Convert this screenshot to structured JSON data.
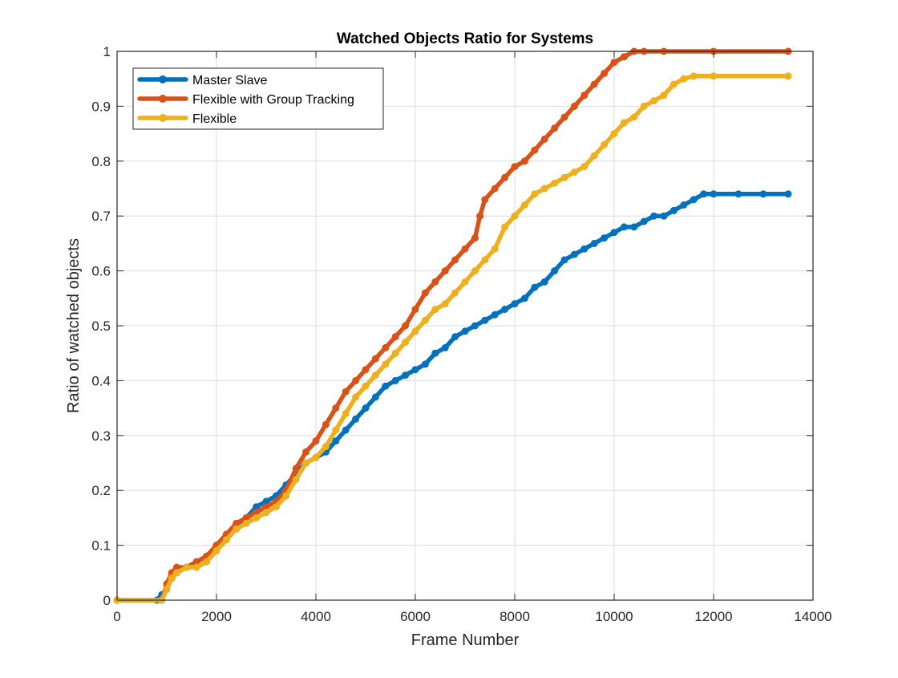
{
  "chart_data": {
    "type": "line",
    "title": "Watched Objects Ratio for Systems",
    "xlabel": "Frame Number",
    "ylabel": "Ratio of watched objects",
    "xlim": [
      0,
      14000
    ],
    "ylim": [
      0,
      1
    ],
    "xticks": [
      0,
      2000,
      4000,
      6000,
      8000,
      10000,
      12000,
      14000
    ],
    "yticks": [
      0,
      0.1,
      0.2,
      0.3,
      0.4,
      0.5,
      0.6,
      0.7,
      0.8,
      0.9,
      1
    ],
    "xtick_labels": [
      "0",
      "2000",
      "4000",
      "6000",
      "8000",
      "10000",
      "12000",
      "14000"
    ],
    "ytick_labels": [
      "0",
      "0.1",
      "0.2",
      "0.3",
      "0.4",
      "0.5",
      "0.6",
      "0.7",
      "0.8",
      "0.9",
      "1"
    ],
    "grid": true,
    "legend_position": "top-left",
    "series": [
      {
        "name": "Master Slave",
        "color": "#0072BD",
        "x": [
          0,
          800,
          900,
          1000,
          1100,
          1200,
          1400,
          1600,
          1800,
          2000,
          2200,
          2400,
          2600,
          2800,
          3000,
          3200,
          3400,
          3600,
          3800,
          4000,
          4200,
          4400,
          4600,
          4800,
          5000,
          5200,
          5400,
          5600,
          5800,
          6000,
          6200,
          6400,
          6600,
          6800,
          7000,
          7200,
          7400,
          7600,
          7800,
          8000,
          8200,
          8400,
          8600,
          8800,
          9000,
          9200,
          9400,
          9600,
          9800,
          10000,
          10200,
          10400,
          10600,
          10800,
          11000,
          11200,
          11400,
          11600,
          11800,
          12000,
          12500,
          13000,
          13500
        ],
        "y": [
          0,
          0,
          0.01,
          0.02,
          0.04,
          0.05,
          0.06,
          0.07,
          0.08,
          0.1,
          0.12,
          0.13,
          0.15,
          0.17,
          0.18,
          0.19,
          0.21,
          0.23,
          0.25,
          0.26,
          0.27,
          0.29,
          0.31,
          0.33,
          0.35,
          0.37,
          0.39,
          0.4,
          0.41,
          0.42,
          0.43,
          0.45,
          0.46,
          0.48,
          0.49,
          0.5,
          0.51,
          0.52,
          0.53,
          0.54,
          0.55,
          0.57,
          0.58,
          0.6,
          0.62,
          0.63,
          0.64,
          0.65,
          0.66,
          0.67,
          0.68,
          0.68,
          0.69,
          0.7,
          0.7,
          0.71,
          0.72,
          0.73,
          0.74,
          0.74,
          0.74,
          0.74,
          0.74
        ]
      },
      {
        "name": "Flexible with Group Tracking",
        "color": "#D95319",
        "x": [
          0,
          900,
          1000,
          1100,
          1200,
          1400,
          1600,
          1800,
          2000,
          2200,
          2400,
          2600,
          2800,
          3000,
          3200,
          3400,
          3600,
          3800,
          4000,
          4200,
          4400,
          4600,
          4800,
          5000,
          5200,
          5400,
          5600,
          5800,
          6000,
          6200,
          6400,
          6600,
          6800,
          7000,
          7200,
          7300,
          7400,
          7600,
          7800,
          8000,
          8200,
          8400,
          8600,
          8800,
          9000,
          9200,
          9400,
          9600,
          9800,
          10000,
          10200,
          10400,
          10600,
          11000,
          12000,
          13500
        ],
        "y": [
          0,
          0,
          0.03,
          0.05,
          0.06,
          0.06,
          0.07,
          0.08,
          0.1,
          0.12,
          0.14,
          0.15,
          0.16,
          0.17,
          0.18,
          0.2,
          0.24,
          0.27,
          0.29,
          0.32,
          0.35,
          0.38,
          0.4,
          0.42,
          0.44,
          0.46,
          0.48,
          0.5,
          0.53,
          0.56,
          0.58,
          0.6,
          0.62,
          0.64,
          0.66,
          0.7,
          0.73,
          0.75,
          0.77,
          0.79,
          0.8,
          0.82,
          0.84,
          0.86,
          0.88,
          0.9,
          0.92,
          0.94,
          0.96,
          0.98,
          0.99,
          1.0,
          1.0,
          1.0,
          1.0,
          1.0
        ]
      },
      {
        "name": "Flexible",
        "color": "#EDB120",
        "x": [
          0,
          900,
          1000,
          1100,
          1200,
          1400,
          1600,
          1800,
          2000,
          2200,
          2400,
          2600,
          2800,
          3000,
          3200,
          3400,
          3600,
          3800,
          4000,
          4200,
          4400,
          4600,
          4800,
          5000,
          5200,
          5400,
          5600,
          5800,
          6000,
          6200,
          6400,
          6600,
          6800,
          7000,
          7200,
          7400,
          7600,
          7800,
          8000,
          8200,
          8400,
          8600,
          8800,
          9000,
          9200,
          9400,
          9600,
          9800,
          10000,
          10200,
          10400,
          10600,
          10800,
          11000,
          11200,
          11400,
          11600,
          12000,
          13500
        ],
        "y": [
          0,
          0,
          0.02,
          0.04,
          0.05,
          0.06,
          0.06,
          0.07,
          0.09,
          0.11,
          0.13,
          0.14,
          0.15,
          0.16,
          0.17,
          0.19,
          0.22,
          0.25,
          0.26,
          0.28,
          0.31,
          0.34,
          0.37,
          0.39,
          0.41,
          0.43,
          0.45,
          0.47,
          0.49,
          0.51,
          0.53,
          0.54,
          0.56,
          0.58,
          0.6,
          0.62,
          0.64,
          0.68,
          0.7,
          0.72,
          0.74,
          0.75,
          0.76,
          0.77,
          0.78,
          0.79,
          0.81,
          0.83,
          0.85,
          0.87,
          0.88,
          0.9,
          0.91,
          0.92,
          0.94,
          0.95,
          0.955,
          0.955,
          0.955
        ]
      }
    ]
  }
}
